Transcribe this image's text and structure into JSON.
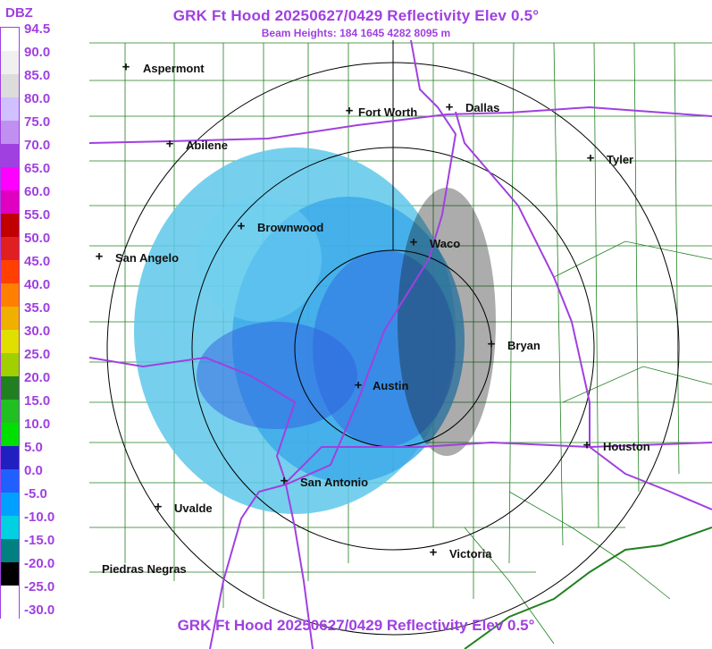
{
  "header": {
    "title": "GRK Ft Hood 20250627/0429 Reflectivity Elev 0.5°",
    "beam_heights": "Beam Heights: 184 1645 4282 8095 m",
    "footer_title": "GRK Ft Hood 20250627/0429 Reflectivity Elev 0.5°"
  },
  "legend": {
    "unit": "DBZ",
    "labels": [
      "94.5",
      "90.0",
      "85.0",
      "80.0",
      "75.0",
      "70.0",
      "65.0",
      "60.0",
      "55.0",
      "50.0",
      "45.0",
      "40.0",
      "35.0",
      "30.0",
      "25.0",
      "20.0",
      "15.0",
      "10.0",
      "5.0",
      "0.0",
      "-5.0",
      "-10.0",
      "-15.0",
      "-20.0",
      "-25.0",
      "-30.0"
    ],
    "colors": [
      "#ffffff",
      "#f0f0f0",
      "#dcdcdc",
      "#d0c0ff",
      "#c090f0",
      "#a040e0",
      "#ff00ff",
      "#e000c0",
      "#c00000",
      "#e02020",
      "#ff4000",
      "#ff8000",
      "#f0b000",
      "#e0e000",
      "#a0d000",
      "#208020",
      "#20c020",
      "#00e000",
      "#2020c0",
      "#2060ff",
      "#00a0ff",
      "#00d0e0",
      "#008080",
      "#000000",
      "#ffffff",
      "#ffffff"
    ]
  },
  "cities": [
    {
      "name": "Aspermont",
      "mark": "+"
    },
    {
      "name": "Fort Worth",
      "mark": "+"
    },
    {
      "name": "Dallas",
      "mark": "+"
    },
    {
      "name": "Abilene",
      "mark": "+"
    },
    {
      "name": "Tyler",
      "mark": "+"
    },
    {
      "name": "Brownwood",
      "mark": "+"
    },
    {
      "name": "Waco",
      "mark": "+"
    },
    {
      "name": "San Angelo",
      "mark": "+"
    },
    {
      "name": "Bryan",
      "mark": "+"
    },
    {
      "name": "Austin",
      "mark": "+"
    },
    {
      "name": "Houston",
      "mark": "+"
    },
    {
      "name": "San Antonio",
      "mark": "+"
    },
    {
      "name": "Uvalde",
      "mark": "+"
    },
    {
      "name": "Victoria",
      "mark": "+"
    },
    {
      "name": "Piedras Negras",
      "mark": ""
    }
  ],
  "colors": {
    "highway": "#a040e0",
    "county_lines": "#208020",
    "range_rings": "#000000",
    "echo_light": "#40c0e0",
    "echo_mid": "#2060e0"
  }
}
